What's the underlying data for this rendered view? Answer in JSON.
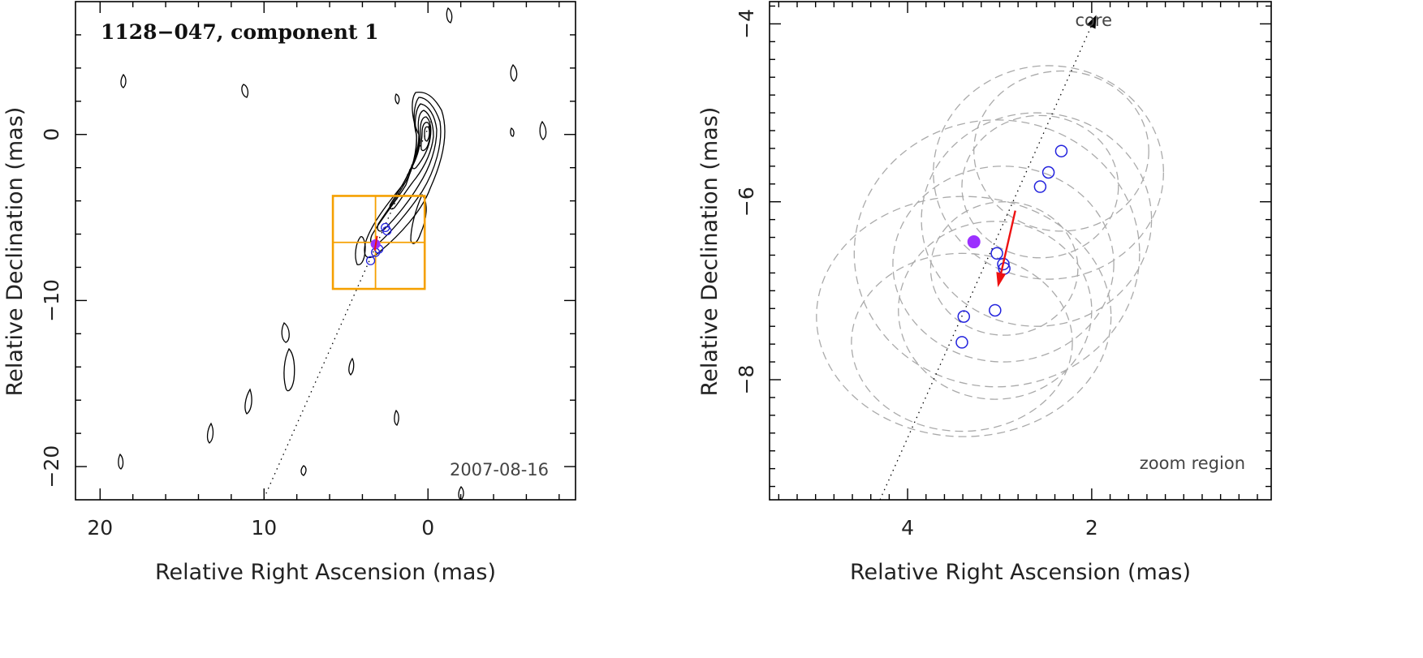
{
  "chart_data": [
    {
      "type": "scatter",
      "panel": "left",
      "title": "1128−047, component 1",
      "xlabel": "Relative Right Ascension (mas)",
      "ylabel": "Relative Declination (mas)",
      "xlim": [
        21.5,
        -9
      ],
      "ylim": [
        -22,
        8
      ],
      "x_axis_reversed": true,
      "xticks": [
        {
          "value": 20,
          "label": "20"
        },
        {
          "value": 10,
          "label": "10"
        },
        {
          "value": 0,
          "label": "0"
        }
      ],
      "yticks": [
        {
          "value": 0,
          "label": "0"
        },
        {
          "value": -10,
          "label": "−10"
        },
        {
          "value": -20,
          "label": "−20"
        }
      ],
      "epoch_label": "2007-08-16",
      "zoom_box": {
        "x": [
          0.2,
          5.8
        ],
        "y": [
          -9.3,
          -3.7
        ],
        "x_split": 3.2,
        "y_split": -6.5
      },
      "component_positions": [
        {
          "x": 2.6,
          "y": -5.6
        },
        {
          "x": 2.5,
          "y": -5.8
        },
        {
          "x": 3.0,
          "y": -6.9
        },
        {
          "x": 3.2,
          "y": -7.1
        },
        {
          "x": 3.5,
          "y": -7.6
        }
      ],
      "current_position": {
        "x": 3.2,
        "y": -6.6,
        "color": "#9b30ff"
      },
      "trajectory_line": {
        "from": {
          "x": -0.2,
          "y": 0.8
        },
        "to": {
          "x": 10,
          "y": -21.9
        }
      },
      "contour_color": "#000000",
      "grid": false
    },
    {
      "type": "scatter",
      "panel": "right",
      "xlabel": "Relative Right Ascension (mas)",
      "ylabel": "Relative Declination (mas)",
      "xlim": [
        5.5,
        0.05
      ],
      "ylim": [
        -9.35,
        -3.75
      ],
      "x_axis_reversed": true,
      "xticks": [
        {
          "value": 4,
          "label": "4"
        },
        {
          "value": 2,
          "label": "2"
        }
      ],
      "yticks": [
        {
          "value": -4,
          "label": "−4"
        },
        {
          "value": -6,
          "label": "−6"
        },
        {
          "value": -8,
          "label": "−8"
        }
      ],
      "core_label": "core",
      "zoom_label": "zoom region",
      "component_positions": [
        {
          "x": 2.33,
          "y": -5.43
        },
        {
          "x": 2.47,
          "y": -5.67
        },
        {
          "x": 2.56,
          "y": -5.83
        },
        {
          "x": 3.03,
          "y": -6.58
        },
        {
          "x": 2.96,
          "y": -6.7
        },
        {
          "x": 2.95,
          "y": -6.75
        },
        {
          "x": 3.05,
          "y": -7.22
        },
        {
          "x": 3.39,
          "y": -7.29
        },
        {
          "x": 3.41,
          "y": -7.58
        }
      ],
      "current_position": {
        "x": 3.28,
        "y": -6.45,
        "color": "#9b30ff"
      },
      "motion_arrow": {
        "from": {
          "x": 2.83,
          "y": -6.1
        },
        "to": {
          "x": 3.02,
          "y": -6.96
        },
        "color": "#ee1111"
      },
      "core_direction_line": {
        "from": {
          "x": 4.3,
          "y": -9.35
        },
        "to": {
          "x": 1.95,
          "y": -3.9
        }
      },
      "uncertainty_ellipses": [
        {
          "cx": 2.33,
          "cy": -5.43,
          "rx": 0.95,
          "ry": 0.9
        },
        {
          "cx": 2.47,
          "cy": -5.67,
          "rx": 1.25,
          "ry": 1.2
        },
        {
          "cx": 2.56,
          "cy": -5.83,
          "rx": 0.85,
          "ry": 0.8
        },
        {
          "cx": 3.03,
          "cy": -6.58,
          "rx": 1.55,
          "ry": 1.5
        },
        {
          "cx": 2.96,
          "cy": -6.7,
          "rx": 1.2,
          "ry": 1.1
        },
        {
          "cx": 2.95,
          "cy": -6.75,
          "rx": 0.8,
          "ry": 0.75
        },
        {
          "cx": 3.05,
          "cy": -7.22,
          "rx": 1.05,
          "ry": 1.0
        },
        {
          "cx": 3.39,
          "cy": -7.29,
          "rx": 1.6,
          "ry": 1.35
        },
        {
          "cx": 3.41,
          "cy": -7.58,
          "rx": 1.2,
          "ry": 1.0
        },
        {
          "cx": 2.6,
          "cy": -6.2,
          "rx": 1.25,
          "ry": 1.2
        }
      ],
      "component_color": "#2222dd",
      "ellipse_color": "#aaaaaa",
      "grid": false
    }
  ]
}
